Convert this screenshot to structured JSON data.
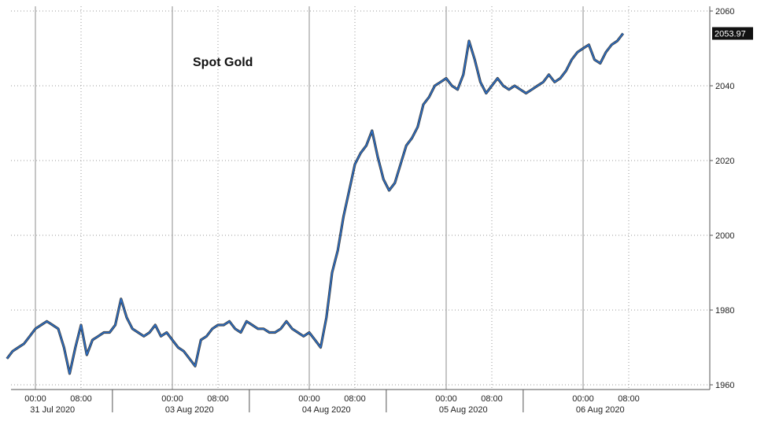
{
  "chart_data": {
    "type": "line",
    "title": "Spot Gold",
    "xlabel": "",
    "ylabel": "",
    "ylim": [
      1960,
      2060
    ],
    "y_ticks": [
      1960,
      1980,
      2000,
      2020,
      2040,
      2060
    ],
    "grid": true,
    "last_value_label": "2053.97",
    "time_ticks": [
      {
        "t": 0,
        "label": "00:00"
      },
      {
        "t": 8,
        "label": "08:00"
      },
      {
        "t": 24,
        "label": "00:00"
      },
      {
        "t": 32,
        "label": "08:00"
      },
      {
        "t": 48,
        "label": "00:00"
      },
      {
        "t": 56,
        "label": "08:00"
      },
      {
        "t": 72,
        "label": "00:00"
      },
      {
        "t": 80,
        "label": "08:00"
      },
      {
        "t": 96,
        "label": "00:00"
      },
      {
        "t": 104,
        "label": "08:00"
      }
    ],
    "session_boundaries": [
      13.5,
      37.5,
      61.5,
      85.5
    ],
    "date_labels": [
      {
        "t": 3,
        "label": "31 Jul 2020"
      },
      {
        "t": 27,
        "label": "03 Aug 2020"
      },
      {
        "t": 51,
        "label": "04 Aug 2020"
      },
      {
        "t": 75,
        "label": "05 Aug 2020"
      },
      {
        "t": 99,
        "label": "06 Aug 2020"
      }
    ],
    "series": [
      {
        "color": "#2a6fc9",
        "x": [
          -5,
          -4,
          -3,
          -2,
          -1,
          0,
          1,
          2,
          3,
          4,
          5,
          6,
          7,
          8,
          9,
          10,
          11,
          12,
          13,
          14,
          15,
          16,
          17,
          18,
          19,
          20,
          21,
          22,
          23,
          24,
          25,
          26,
          27,
          28,
          29,
          30,
          31,
          32,
          33,
          34,
          35,
          36,
          37,
          38,
          39,
          40,
          41,
          42,
          43,
          44,
          45,
          46,
          47,
          48,
          49,
          50,
          51,
          52,
          53,
          54,
          55,
          56,
          57,
          58,
          59,
          60,
          61,
          62,
          63,
          64,
          65,
          66,
          67,
          68,
          69,
          70,
          71,
          72,
          73,
          74,
          75,
          76,
          77,
          78,
          79,
          80,
          81,
          82,
          83,
          84,
          85,
          86,
          87,
          88,
          89,
          90,
          91,
          92,
          93,
          94,
          95,
          96,
          97,
          98,
          99,
          100,
          101,
          102,
          103
        ],
        "y": [
          1967,
          1969,
          1970,
          1971,
          1973,
          1975,
          1976,
          1977,
          1976,
          1975,
          1970,
          1963,
          1970,
          1976,
          1968,
          1972,
          1973,
          1974,
          1974,
          1976,
          1983,
          1978,
          1975,
          1974,
          1973,
          1974,
          1976,
          1973,
          1974,
          1972,
          1970,
          1969,
          1967,
          1965,
          1972,
          1973,
          1975,
          1976,
          1976,
          1977,
          1975,
          1974,
          1977,
          1976,
          1975,
          1975,
          1974,
          1974,
          1975,
          1977,
          1975,
          1974,
          1973,
          1974,
          1972,
          1970,
          1978,
          1990,
          1996,
          2005,
          2012,
          2019,
          2022,
          2024,
          2028,
          2021,
          2015,
          2012,
          2014,
          2019,
          2024,
          2026,
          2029,
          2035,
          2037,
          2040,
          2041,
          2042,
          2040,
          2039,
          2043,
          2052,
          2047,
          2041,
          2038,
          2040,
          2042,
          2040,
          2039,
          2040,
          2039,
          2038,
          2039,
          2040,
          2041,
          2043,
          2041,
          2042,
          2044,
          2047,
          2049,
          2050,
          2051,
          2047,
          2046,
          2049,
          2051,
          2052,
          2054
        ]
      }
    ]
  }
}
